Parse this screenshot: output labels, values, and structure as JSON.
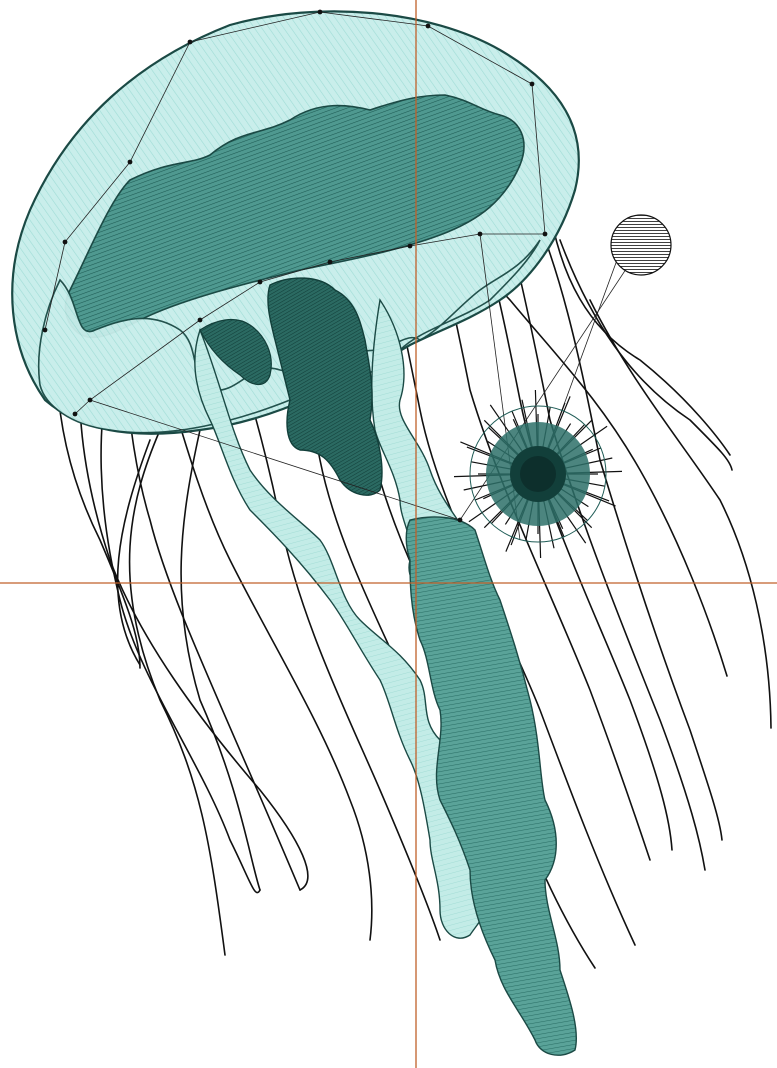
{
  "canvas": {
    "background": "#ffffff"
  },
  "subject": {
    "kind": "jellyfish-embroidery-design",
    "colors": {
      "bell_fill": "#c9eeeb",
      "bell_hatch": "#9fdcd6",
      "inner_fill": "#3f8a80",
      "inner_hatch": "#1d5a53",
      "dark_fill": "#2b6a62",
      "outline": "#1b4a45",
      "tentacle": "#111111",
      "light_arm": "#b5e6e0"
    }
  },
  "overlay": {
    "crosshair_color": "#c0602a",
    "crosshair_horizontal_visible": true,
    "crosshair_vertical_visible": true,
    "stitch_path_color": "#222222"
  },
  "tools": {
    "rotation_handle": {
      "icon": "rotate-handle-icon",
      "color": "#1a1a1a"
    },
    "center_handle": {
      "icon": "center-pin-icon",
      "color": "#1f5c56"
    }
  }
}
